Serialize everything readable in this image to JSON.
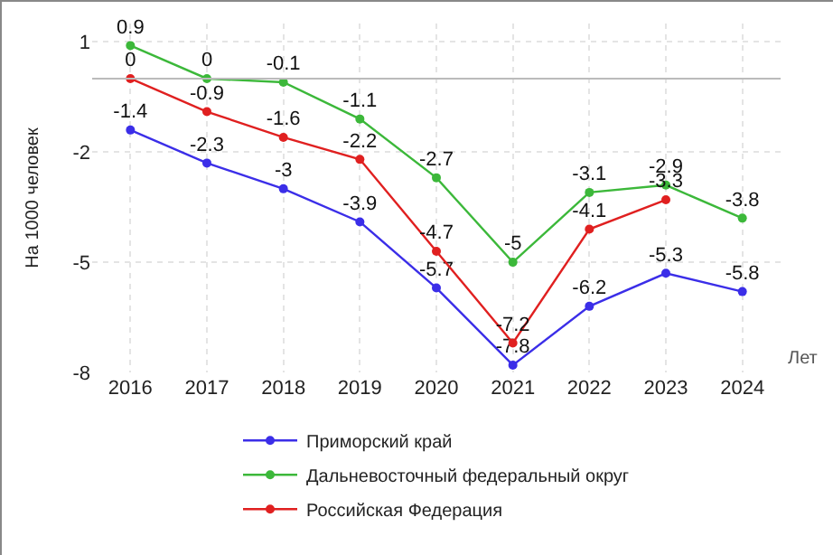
{
  "chart_data": {
    "type": "line",
    "xlabel": "Лет",
    "ylabel": "На 1000 человек",
    "categories": [
      "2016",
      "2017",
      "2018",
      "2019",
      "2020",
      "2021",
      "2022",
      "2023",
      "2024"
    ],
    "series": [
      {
        "name": "Приморский край",
        "color": "#3b2ee8",
        "values": [
          -1.4,
          -2.3,
          -3,
          -3.9,
          -5.7,
          -7.8,
          -6.2,
          -5.3,
          -5.8
        ]
      },
      {
        "name": "Дальневосточный федеральный округ",
        "color": "#3cb83a",
        "values": [
          0.9,
          0,
          -0.1,
          -1.1,
          -2.7,
          -5,
          -3.1,
          -2.9,
          -3.8
        ]
      },
      {
        "name": "Российская Федерация",
        "color": "#e02020",
        "values": [
          0,
          -0.9,
          -1.6,
          -2.2,
          -4.7,
          -7.2,
          -4.1,
          -3.3,
          null
        ]
      }
    ],
    "ylim": [
      -8,
      1.5
    ],
    "yticks": [
      1,
      -2,
      -5,
      -8
    ],
    "grid": true,
    "legend": "bottom",
    "marker": "circle",
    "line_style": "solid",
    "data_labels": true,
    "ref_lines": [
      {
        "axis": "y",
        "value": 0,
        "color": "#bbbbbb"
      }
    ]
  }
}
